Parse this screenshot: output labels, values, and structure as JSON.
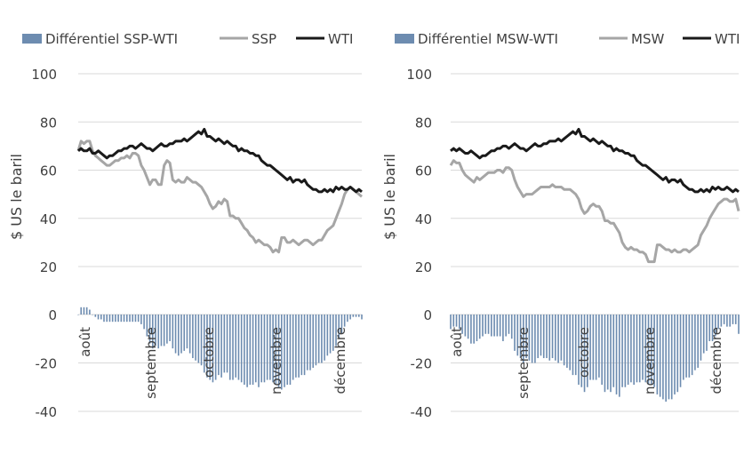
{
  "chart_data": [
    {
      "type": "line+bar",
      "title": "",
      "ylabel": "$ US le baril",
      "ylim_top": [
        20,
        100
      ],
      "yticks_top": [
        "100",
        "80",
        "60",
        "40",
        "20"
      ],
      "ylim_bottom": [
        -40,
        0
      ],
      "yticks_bottom": [
        "0",
        "-20",
        "-40"
      ],
      "months": [
        "août",
        "septembre",
        "octobre",
        "novembre",
        "décembre"
      ],
      "legend": [
        "Différentiel SSP-WTI",
        "SSP",
        "WTI"
      ],
      "colors": {
        "bar": "#6d8cb0",
        "light": "#a6a6a6",
        "dark": "#1a1a1a"
      },
      "wti": [
        68,
        69,
        68,
        68,
        69,
        67,
        67,
        68,
        67,
        66,
        65,
        66,
        66,
        67,
        68,
        68,
        69,
        69,
        70,
        70,
        69,
        70,
        71,
        70,
        69,
        69,
        68,
        69,
        70,
        71,
        70,
        70,
        71,
        71,
        72,
        72,
        72,
        73,
        72,
        73,
        74,
        75,
        76,
        75,
        77,
        74,
        74,
        73,
        72,
        73,
        72,
        71,
        72,
        71,
        70,
        70,
        68,
        69,
        68,
        68,
        67,
        67,
        66,
        66,
        64,
        63,
        62,
        62,
        61,
        60,
        59,
        58,
        57,
        56,
        57,
        55,
        56,
        56,
        55,
        56,
        54,
        53,
        52,
        52,
        51,
        51,
        52,
        51,
        52,
        51,
        53,
        52,
        53,
        52,
        52,
        53,
        52,
        51,
        52,
        51
      ],
      "primary": [
        68,
        72,
        71,
        72,
        72,
        68,
        66,
        65,
        64,
        63,
        62,
        62,
        63,
        64,
        64,
        65,
        65,
        66,
        65,
        67,
        67,
        66,
        62,
        60,
        57,
        54,
        56,
        56,
        54,
        54,
        62,
        64,
        63,
        56,
        55,
        56,
        55,
        55,
        57,
        56,
        55,
        55,
        54,
        53,
        51,
        49,
        46,
        44,
        45,
        47,
        46,
        48,
        47,
        41,
        41,
        40,
        40,
        38,
        36,
        35,
        33,
        32,
        30,
        31,
        30,
        29,
        29,
        28,
        26,
        27,
        26,
        32,
        32,
        30,
        30,
        31,
        30,
        29,
        30,
        31,
        31,
        30,
        29,
        30,
        31,
        31,
        33,
        35,
        36,
        37,
        40,
        43,
        46,
        50,
        52,
        53,
        52,
        51,
        50,
        49
      ],
      "diff": [
        0,
        3,
        3,
        3,
        2,
        0,
        -1,
        -2,
        -2,
        -3,
        -3,
        -3,
        -3,
        -3,
        -3,
        -3,
        -3,
        -3,
        -3,
        -3,
        -3,
        -3,
        -4,
        -6,
        -9,
        -12,
        -14,
        -13,
        -14,
        -13,
        -13,
        -12,
        -11,
        -14,
        -16,
        -17,
        -16,
        -15,
        -14,
        -16,
        -18,
        -19,
        -20,
        -21,
        -24,
        -26,
        -27,
        -28,
        -27,
        -25,
        -26,
        -24,
        -24,
        -27,
        -27,
        -26,
        -27,
        -28,
        -29,
        -30,
        -29,
        -29,
        -28,
        -30,
        -28,
        -28,
        -27,
        -27,
        -28,
        -29,
        -30,
        -31,
        -30,
        -29,
        -29,
        -27,
        -26,
        -26,
        -25,
        -25,
        -23,
        -23,
        -22,
        -21,
        -20,
        -20,
        -19,
        -17,
        -16,
        -15,
        -13,
        -10,
        -8,
        -5,
        -3,
        -2,
        -1,
        -1,
        -1,
        -2
      ]
    },
    {
      "type": "line+bar",
      "title": "",
      "ylabel": "$ US le baril",
      "ylim_top": [
        20,
        100
      ],
      "yticks_top": [
        "100",
        "80",
        "60",
        "40",
        "20"
      ],
      "ylim_bottom": [
        -40,
        0
      ],
      "yticks_bottom": [
        "0",
        "-20",
        "-40"
      ],
      "months": [
        "août",
        "septembre",
        "octobre",
        "novembre",
        "décembre"
      ],
      "legend": [
        "Différentiel MSW-WTI",
        "MSW",
        "WTI"
      ],
      "colors": {
        "bar": "#6d8cb0",
        "light": "#a6a6a6",
        "dark": "#1a1a1a"
      },
      "wti": [
        68,
        69,
        68,
        69,
        68,
        67,
        67,
        68,
        67,
        66,
        65,
        66,
        66,
        67,
        68,
        68,
        69,
        69,
        70,
        70,
        69,
        70,
        71,
        70,
        69,
        69,
        68,
        69,
        70,
        71,
        70,
        70,
        71,
        71,
        72,
        72,
        72,
        73,
        72,
        73,
        74,
        75,
        76,
        75,
        77,
        74,
        74,
        73,
        72,
        73,
        72,
        71,
        72,
        71,
        70,
        70,
        68,
        69,
        68,
        68,
        67,
        67,
        66,
        66,
        64,
        63,
        62,
        62,
        61,
        60,
        59,
        58,
        57,
        56,
        57,
        55,
        56,
        56,
        55,
        56,
        54,
        53,
        52,
        52,
        51,
        51,
        52,
        51,
        52,
        51,
        53,
        52,
        53,
        52,
        52,
        53,
        52,
        51,
        52,
        51
      ],
      "primary": [
        62,
        64,
        63,
        63,
        60,
        58,
        57,
        56,
        55,
        57,
        56,
        57,
        58,
        59,
        59,
        59,
        60,
        60,
        59,
        61,
        61,
        60,
        56,
        53,
        51,
        49,
        50,
        50,
        50,
        51,
        52,
        53,
        53,
        53,
        53,
        54,
        53,
        53,
        53,
        52,
        52,
        52,
        51,
        50,
        48,
        44,
        42,
        43,
        45,
        46,
        45,
        45,
        43,
        39,
        39,
        38,
        38,
        36,
        34,
        30,
        28,
        27,
        28,
        27,
        27,
        26,
        26,
        25,
        22,
        22,
        22,
        29,
        29,
        28,
        27,
        27,
        26,
        27,
        26,
        26,
        27,
        27,
        26,
        27,
        28,
        29,
        33,
        35,
        37,
        40,
        42,
        44,
        46,
        47,
        48,
        48,
        47,
        47,
        48,
        43
      ],
      "diff": [
        -6,
        -5,
        -5,
        -6,
        -8,
        -9,
        -10,
        -12,
        -12,
        -11,
        -10,
        -9,
        -8,
        -8,
        -9,
        -9,
        -9,
        -9,
        -11,
        -9,
        -8,
        -10,
        -15,
        -17,
        -18,
        -20,
        -18,
        -19,
        -20,
        -20,
        -18,
        -17,
        -18,
        -18,
        -19,
        -18,
        -19,
        -20,
        -19,
        -21,
        -22,
        -23,
        -25,
        -25,
        -29,
        -30,
        -32,
        -30,
        -27,
        -27,
        -27,
        -26,
        -29,
        -32,
        -31,
        -32,
        -30,
        -33,
        -34,
        -30,
        -30,
        -29,
        -28,
        -29,
        -28,
        -28,
        -27,
        -28,
        -29,
        -29,
        -30,
        -33,
        -34,
        -35,
        -36,
        -35,
        -35,
        -33,
        -32,
        -30,
        -27,
        -26,
        -26,
        -25,
        -23,
        -22,
        -19,
        -16,
        -15,
        -11,
        -11,
        -9,
        -6,
        -5,
        -4,
        -5,
        -5,
        -4,
        -4,
        -8
      ]
    }
  ]
}
